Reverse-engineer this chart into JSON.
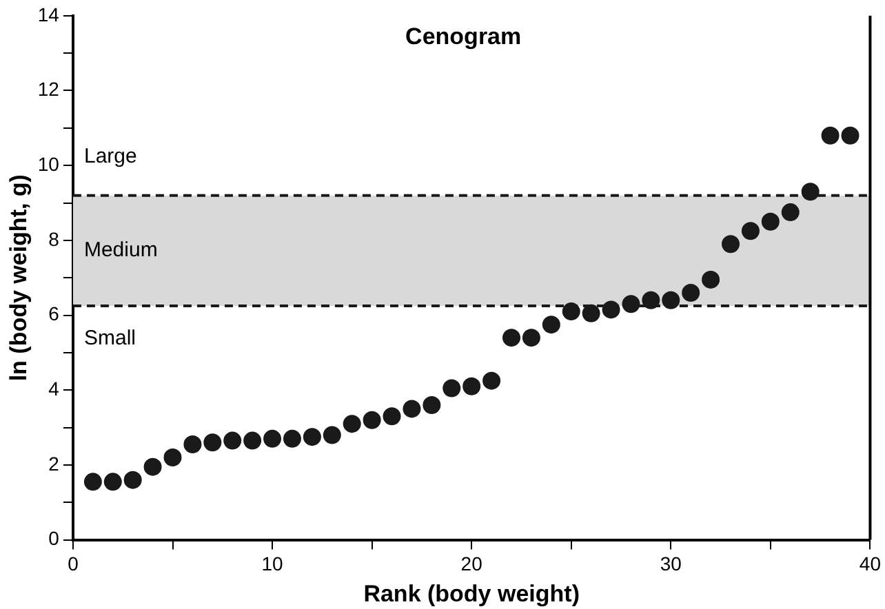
{
  "chart_data": {
    "type": "scatter",
    "title": "Cenogram",
    "xlabel": "Rank (body weight)",
    "ylabel": "ln (body weight, g)",
    "x": [
      1,
      2,
      3,
      4,
      5,
      6,
      7,
      8,
      9,
      10,
      11,
      12,
      13,
      14,
      15,
      16,
      17,
      18,
      19,
      20,
      21,
      22,
      23,
      24,
      25,
      26,
      27,
      28,
      29,
      30,
      31,
      32,
      33,
      34,
      35,
      36,
      37,
      38,
      39
    ],
    "series": [
      {
        "color": "#1a1a1a",
        "values": [
          1.55,
          1.55,
          1.6,
          1.95,
          2.2,
          2.55,
          2.6,
          2.65,
          2.65,
          2.7,
          2.7,
          2.75,
          2.8,
          3.1,
          3.2,
          3.3,
          3.5,
          3.6,
          4.05,
          4.1,
          4.25,
          5.4,
          5.4,
          5.75,
          6.1,
          6.05,
          6.15,
          6.3,
          6.4,
          6.4,
          6.6,
          6.95,
          7.9,
          8.25,
          8.5,
          8.75,
          9.3,
          10.8,
          10.8
        ]
      }
    ],
    "xlim": [
      0,
      40
    ],
    "ylim": [
      0,
      14
    ],
    "xticks": [
      0,
      {
        "value": 5,
        "label": null
      },
      10,
      {
        "value": 15,
        "label": null
      },
      20,
      {
        "value": 25,
        "label": null
      },
      30,
      {
        "value": 35,
        "label": null
      },
      40
    ],
    "yticks": [
      0,
      {
        "value": 1,
        "label": null
      },
      2,
      {
        "value": 3,
        "label": null
      },
      4,
      {
        "value": 5,
        "label": null
      },
      6,
      {
        "value": 7,
        "label": null
      },
      8,
      {
        "value": 9,
        "label": null
      },
      10,
      {
        "value": 11,
        "label": null
      },
      12,
      {
        "value": 13,
        "label": null
      },
      14
    ],
    "bands": [
      {
        "axis": "y",
        "from": 6.25,
        "to": 9.2,
        "label": "Medium",
        "color": "#d9d9d9"
      }
    ],
    "ref_lines": [
      {
        "axis": "y",
        "value": 6.25,
        "line_style": "dashed",
        "color": "#1a1a1a"
      },
      {
        "axis": "y",
        "value": 9.2,
        "line_style": "dashed",
        "color": "#1a1a1a"
      }
    ],
    "annotations": [
      "Large",
      "Small"
    ],
    "marker": "circle",
    "grid": false,
    "legend": false
  }
}
